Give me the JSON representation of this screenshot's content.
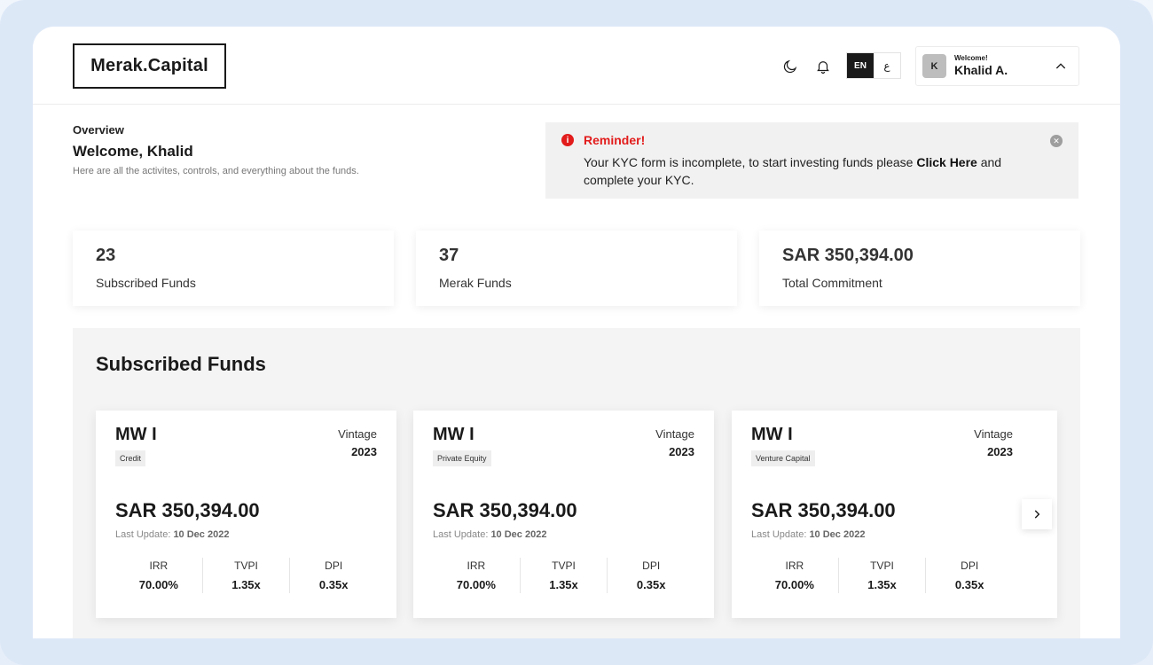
{
  "header": {
    "logo": "Merak.Capital",
    "lang": {
      "active": "EN",
      "alt": "ع"
    },
    "user": {
      "initial": "K",
      "greeting": "Welcome!",
      "name": "Khalid A."
    }
  },
  "overview": {
    "label": "Overview",
    "title": "Welcome, Khalid",
    "subtitle": "Here are all the activites, controls, and everything about the funds."
  },
  "reminder": {
    "title": "Reminder!",
    "text_before": "Your KYC form is incomplete, to start investing funds please ",
    "link": "Click Here",
    "text_after": " and complete your KYC."
  },
  "stats": [
    {
      "value": "23",
      "label": "Subscribed Funds"
    },
    {
      "value": "37",
      "label": "Merak Funds"
    },
    {
      "value": "SAR 350,394.00",
      "label": "Total Commitment"
    }
  ],
  "subscribed": {
    "title": "Subscribed Funds",
    "funds": [
      {
        "name": "MW I",
        "tag": "Credit",
        "vintage_label": "Vintage",
        "vintage": "2023",
        "amount": "SAR 350,394.00",
        "update_label": "Last Update: ",
        "update_date": "10 Dec 2022",
        "metrics": [
          {
            "label": "IRR",
            "value": "70.00%"
          },
          {
            "label": "TVPI",
            "value": "1.35x"
          },
          {
            "label": "DPI",
            "value": "0.35x"
          }
        ]
      },
      {
        "name": "MW I",
        "tag": "Private Equity",
        "vintage_label": "Vintage",
        "vintage": "2023",
        "amount": "SAR 350,394.00",
        "update_label": "Last Update: ",
        "update_date": "10 Dec 2022",
        "metrics": [
          {
            "label": "IRR",
            "value": "70.00%"
          },
          {
            "label": "TVPI",
            "value": "1.35x"
          },
          {
            "label": "DPI",
            "value": "0.35x"
          }
        ]
      },
      {
        "name": "MW I",
        "tag": "Venture Capital",
        "vintage_label": "Vintage",
        "vintage": "2023",
        "amount": "SAR 350,394.00",
        "update_label": "Last Update: ",
        "update_date": "10 Dec 2022",
        "metrics": [
          {
            "label": "IRR",
            "value": "70.00%"
          },
          {
            "label": "TVPI",
            "value": "1.35x"
          },
          {
            "label": "DPI",
            "value": "0.35x"
          }
        ]
      }
    ]
  },
  "icons": {
    "theme": "moon-icon",
    "notifications": "bell-icon",
    "user_menu": "chevron-up-icon",
    "reminder": "info-icon",
    "reminder_close": "close-icon",
    "carousel_next": "chevron-right-icon"
  },
  "colors": {
    "accent": "#1a1a1a",
    "alert": "#e21b1b",
    "panel": "#f4f4f4"
  }
}
